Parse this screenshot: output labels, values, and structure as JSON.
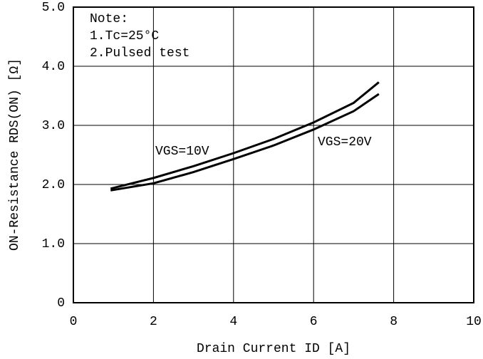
{
  "chart_data": {
    "type": "line",
    "xlabel": "Drain Current ID [A]",
    "ylabel": "ON-Resistance RDS(ON) [Ω]",
    "notes": [
      "Note:",
      "1.Tc=25°C",
      "2.Pulsed test"
    ],
    "x": [
      0.93,
      2,
      3,
      4,
      5,
      6,
      7,
      7.63
    ],
    "series": [
      {
        "name": "VGS=10V",
        "color": "#000000",
        "values": [
          1.93,
          2.11,
          2.31,
          2.53,
          2.77,
          3.05,
          3.38,
          3.73
        ]
      },
      {
        "name": "VGS=20V",
        "color": "#000000",
        "values": [
          1.9,
          2.02,
          2.21,
          2.43,
          2.66,
          2.93,
          3.24,
          3.53
        ]
      }
    ],
    "xlim": [
      0,
      10
    ],
    "xticks": [
      0,
      2,
      4,
      6,
      8,
      10
    ],
    "ylim": [
      0,
      5
    ],
    "yticks": [
      0,
      {
        "value": 1,
        "label": "1.0"
      },
      {
        "value": 2,
        "label": "2.0"
      },
      {
        "value": 3,
        "label": "3.0"
      },
      {
        "value": 4,
        "label": "4.0"
      },
      {
        "value": 5,
        "label": "5.0"
      }
    ],
    "grid": true
  }
}
